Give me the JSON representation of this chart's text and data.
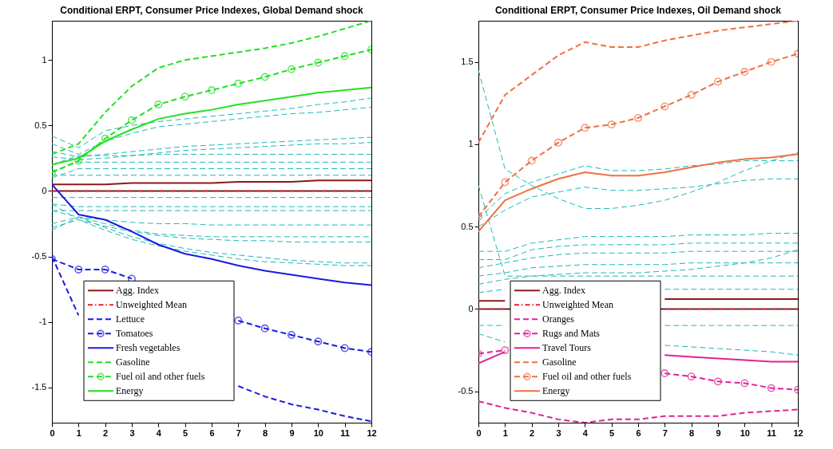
{
  "chart_data": [
    {
      "type": "line",
      "title": "Conditional ERPT, Consumer Price Indexes, Global Demand shock",
      "x": [
        0,
        1,
        2,
        3,
        4,
        5,
        6,
        7,
        8,
        9,
        10,
        11,
        12
      ],
      "xlim": [
        0,
        12
      ],
      "xticks": [
        0,
        1,
        2,
        3,
        4,
        5,
        6,
        7,
        8,
        9,
        10,
        11,
        12
      ],
      "ylim": [
        -1.77,
        1.3
      ],
      "yticks": [
        -1.5,
        -1,
        -0.5,
        0,
        0.5,
        1
      ],
      "grid": false,
      "legend": "bottom left",
      "ref_lines": [
        {
          "axis": "y",
          "value": 0,
          "color": "#000000"
        }
      ],
      "series": [
        {
          "color": "#1fb8b8",
          "line_style": "dashed",
          "values": [
            0.42,
            0.33,
            0.46,
            0.5,
            0.53,
            0.55,
            0.57,
            0.59,
            0.61,
            0.63,
            0.66,
            0.68,
            0.71
          ]
        },
        {
          "color": "#1fb8b8",
          "line_style": "dashed",
          "values": [
            0.36,
            0.28,
            0.38,
            0.44,
            0.49,
            0.51,
            0.53,
            0.55,
            0.57,
            0.59,
            0.6,
            0.62,
            0.64
          ]
        },
        {
          "color": "#1fb8b8",
          "line_style": "dashed",
          "values": [
            0.3,
            0.26,
            0.28,
            0.3,
            0.32,
            0.34,
            0.35,
            0.36,
            0.37,
            0.38,
            0.39,
            0.4,
            0.41
          ]
        },
        {
          "color": "#1fb8b8",
          "line_style": "dashed",
          "values": [
            0.26,
            0.24,
            0.25,
            0.27,
            0.29,
            0.31,
            0.32,
            0.33,
            0.34,
            0.35,
            0.36,
            0.36,
            0.37
          ]
        },
        {
          "color": "#1fb8b8",
          "line_style": "dashed",
          "values": [
            0.2,
            0.27,
            0.27,
            0.27,
            0.28,
            0.28,
            0.28,
            0.28,
            0.28,
            0.28,
            0.28,
            0.28,
            0.28
          ]
        },
        {
          "color": "#1fb8b8",
          "line_style": "dashed",
          "values": [
            0.15,
            0.22,
            0.22,
            0.22,
            0.22,
            0.22,
            0.22,
            0.22,
            0.22,
            0.22,
            0.22,
            0.22,
            0.22
          ]
        },
        {
          "color": "#1fb8b8",
          "line_style": "dashed",
          "values": [
            0.1,
            0.17,
            0.17,
            0.17,
            0.17,
            0.17,
            0.17,
            0.17,
            0.17,
            0.17,
            0.17,
            0.17,
            0.17
          ]
        },
        {
          "color": "#1fb8b8",
          "line_style": "dashed",
          "values": [
            0.12,
            0.12,
            0.12,
            0.12,
            0.12,
            0.12,
            0.12,
            0.12,
            0.12,
            0.12,
            0.12,
            0.12,
            0.12
          ]
        },
        {
          "color": "#1fb8b8",
          "line_style": "dashed",
          "values": [
            -0.05,
            -0.05,
            -0.05,
            -0.05,
            -0.05,
            -0.05,
            -0.05,
            -0.05,
            -0.05,
            -0.05,
            -0.05,
            -0.05,
            -0.05
          ]
        },
        {
          "color": "#1fb8b8",
          "line_style": "dashed",
          "values": [
            -0.1,
            -0.12,
            -0.12,
            -0.12,
            -0.12,
            -0.12,
            -0.12,
            -0.12,
            -0.12,
            -0.12,
            -0.12,
            -0.12,
            -0.12
          ]
        },
        {
          "color": "#1fb8b8",
          "line_style": "dashed",
          "values": [
            -0.15,
            -0.15,
            -0.15,
            -0.15,
            -0.15,
            -0.15,
            -0.15,
            -0.15,
            -0.15,
            -0.15,
            -0.15,
            -0.15,
            -0.15
          ]
        },
        {
          "color": "#1fb8b8",
          "line_style": "dashed",
          "values": [
            -0.25,
            -0.2,
            -0.22,
            -0.24,
            -0.25,
            -0.25,
            -0.26,
            -0.26,
            -0.26,
            -0.26,
            -0.26,
            -0.26,
            -0.26
          ]
        },
        {
          "color": "#1fb8b8",
          "line_style": "dashed",
          "values": [
            -0.3,
            -0.2,
            -0.25,
            -0.3,
            -0.33,
            -0.34,
            -0.35,
            -0.35,
            -0.35,
            -0.35,
            -0.35,
            -0.35,
            -0.35
          ]
        },
        {
          "color": "#1fb8b8",
          "line_style": "dashed",
          "values": [
            -0.28,
            -0.22,
            -0.27,
            -0.31,
            -0.34,
            -0.36,
            -0.37,
            -0.38,
            -0.38,
            -0.39,
            -0.39,
            -0.39,
            -0.39
          ]
        },
        {
          "color": "#1fb8b8",
          "line_style": "dashed",
          "values": [
            -0.15,
            -0.2,
            -0.28,
            -0.35,
            -0.4,
            -0.44,
            -0.47,
            -0.49,
            -0.51,
            -0.53,
            -0.54,
            -0.55,
            -0.55
          ]
        },
        {
          "color": "#1fb8b8",
          "line_style": "dashed",
          "values": [
            -0.1,
            -0.22,
            -0.3,
            -0.37,
            -0.42,
            -0.46,
            -0.49,
            -0.52,
            -0.54,
            -0.55,
            -0.56,
            -0.57,
            -0.57
          ]
        },
        {
          "name": "Agg. Index",
          "color": "#8b1a1a",
          "line_style": "solid",
          "values": [
            0.05,
            0.05,
            0.05,
            0.06,
            0.06,
            0.06,
            0.06,
            0.07,
            0.07,
            0.07,
            0.08,
            0.08,
            0.08
          ]
        },
        {
          "name": "Unweighted Mean",
          "color": "#e8202a",
          "line_style": "dotted",
          "values": [
            0,
            0,
            0,
            0,
            0,
            0,
            0,
            0,
            0,
            0,
            0,
            0,
            0
          ]
        },
        {
          "name": "Lettuce",
          "color": "#1a1adf",
          "line_style": "dashed",
          "values": [
            -0.5,
            -0.95,
            null,
            null,
            null,
            null,
            null,
            -1.49,
            -1.57,
            -1.63,
            -1.67,
            -1.72,
            -1.76
          ]
        },
        {
          "name": "Tomatoes",
          "color": "#1a1adf",
          "line_style": "dashed",
          "marker": "circle",
          "values": [
            -0.52,
            -0.6,
            -0.6,
            -0.67,
            null,
            null,
            null,
            -0.99,
            -1.05,
            -1.1,
            -1.15,
            -1.2,
            -1.23
          ]
        },
        {
          "name": "Fresh vegetables",
          "color": "#1a1adf",
          "line_style": "solid",
          "values": [
            0.05,
            -0.18,
            -0.22,
            -0.31,
            -0.41,
            -0.48,
            -0.52,
            -0.57,
            -0.61,
            -0.64,
            -0.67,
            -0.7,
            -0.72
          ]
        },
        {
          "name": "Gasoline",
          "color": "#22e022",
          "line_style": "dashed",
          "values": [
            0.28,
            0.36,
            0.6,
            0.8,
            0.94,
            1.0,
            1.03,
            1.06,
            1.09,
            1.13,
            1.18,
            1.24,
            1.3
          ]
        },
        {
          "name": "Fuel oil and other fuels",
          "color": "#22e022",
          "line_style": "dashed",
          "marker": "circle",
          "values": [
            0.14,
            0.23,
            0.4,
            0.54,
            0.66,
            0.72,
            0.77,
            0.82,
            0.87,
            0.93,
            0.98,
            1.03,
            1.08
          ]
        },
        {
          "name": "Energy",
          "color": "#22e022",
          "line_style": "solid",
          "values": [
            0.2,
            0.25,
            0.38,
            0.47,
            0.55,
            0.59,
            0.62,
            0.66,
            0.69,
            0.72,
            0.75,
            0.77,
            0.79
          ]
        }
      ]
    },
    {
      "type": "line",
      "title": "Conditional ERPT, Consumer Price Indexes, Oil Demand shock",
      "x": [
        0,
        1,
        2,
        3,
        4,
        5,
        6,
        7,
        8,
        9,
        10,
        11,
        12
      ],
      "xlim": [
        0,
        12
      ],
      "xticks": [
        0,
        1,
        2,
        3,
        4,
        5,
        6,
        7,
        8,
        9,
        10,
        11,
        12
      ],
      "ylim": [
        -0.69,
        1.75
      ],
      "yticks": [
        -0.5,
        0,
        0.5,
        1,
        1.5
      ],
      "grid": false,
      "legend": "bottom left",
      "ref_lines": [
        {
          "axis": "y",
          "value": 0,
          "color": "#000000"
        }
      ],
      "series": [
        {
          "color": "#1fb8b8",
          "line_style": "dashed",
          "values": [
            1.45,
            0.85,
            0.75,
            0.67,
            0.61,
            0.61,
            0.63,
            0.66,
            0.71,
            0.77,
            0.84,
            0.9,
            0.95
          ]
        },
        {
          "color": "#1fb8b8",
          "line_style": "dashed",
          "values": [
            0.55,
            0.7,
            0.77,
            0.82,
            0.87,
            0.84,
            0.84,
            0.85,
            0.87,
            0.88,
            0.9,
            0.9,
            0.9
          ]
        },
        {
          "color": "#1fb8b8",
          "line_style": "dashed",
          "values": [
            0.5,
            0.6,
            0.68,
            0.71,
            0.74,
            0.72,
            0.72,
            0.73,
            0.74,
            0.76,
            0.78,
            0.79,
            0.79
          ]
        },
        {
          "color": "#1fb8b8",
          "line_style": "dashed",
          "values": [
            0.75,
            0.2,
            0.2,
            0.2,
            0.2,
            0.2,
            0.2,
            0.2,
            0.2,
            0.2,
            0.2,
            0.2,
            0.2
          ]
        },
        {
          "color": "#1fb8b8",
          "line_style": "dashed",
          "values": [
            0.35,
            0.35,
            0.4,
            0.42,
            0.44,
            0.44,
            0.44,
            0.44,
            0.45,
            0.45,
            0.45,
            0.46,
            0.46
          ]
        },
        {
          "color": "#1fb8b8",
          "line_style": "dashed",
          "values": [
            0.3,
            0.3,
            0.36,
            0.38,
            0.39,
            0.39,
            0.39,
            0.39,
            0.4,
            0.4,
            0.4,
            0.4,
            0.4
          ]
        },
        {
          "color": "#1fb8b8",
          "line_style": "dashed",
          "values": [
            0.25,
            0.28,
            0.31,
            0.33,
            0.34,
            0.34,
            0.34,
            0.34,
            0.35,
            0.35,
            0.35,
            0.35,
            0.35
          ]
        },
        {
          "color": "#1fb8b8",
          "line_style": "dashed",
          "values": [
            0.2,
            0.22,
            0.25,
            0.26,
            0.27,
            0.27,
            0.27,
            0.27,
            0.28,
            0.28,
            0.28,
            0.28,
            0.28
          ]
        },
        {
          "color": "#1fb8b8",
          "line_style": "dashed",
          "values": [
            0.15,
            0.18,
            0.2,
            0.21,
            0.22,
            0.22,
            0.22,
            0.23,
            0.24,
            0.26,
            0.28,
            0.31,
            0.36
          ]
        },
        {
          "color": "#1fb8b8",
          "line_style": "dashed",
          "values": [
            0.1,
            0.12,
            null,
            null,
            null,
            null,
            null,
            0.12,
            0.12,
            0.12,
            0.12,
            0.12,
            0.12
          ]
        },
        {
          "color": "#1fb8b8",
          "line_style": "dashed",
          "values": [
            -0.1,
            -0.1,
            null,
            null,
            null,
            null,
            null,
            -0.1,
            -0.1,
            -0.1,
            -0.1,
            -0.1,
            -0.1
          ]
        },
        {
          "color": "#1fb8b8",
          "line_style": "dashed",
          "values": [
            -0.15,
            -0.2,
            null,
            null,
            null,
            null,
            null,
            -0.22,
            -0.23,
            -0.24,
            -0.25,
            -0.26,
            -0.28
          ]
        },
        {
          "name": "Agg. Index",
          "color": "#8b1a1a",
          "line_style": "solid",
          "values": [
            0.05,
            0.05,
            null,
            null,
            null,
            null,
            null,
            0.06,
            0.06,
            0.06,
            0.06,
            0.06,
            0.06
          ]
        },
        {
          "name": "Unweighted Mean",
          "color": "#e8202a",
          "line_style": "dotted",
          "values": [
            0,
            0,
            null,
            null,
            null,
            null,
            null,
            0,
            0,
            0,
            0,
            0,
            0
          ]
        },
        {
          "name": "Oranges",
          "color": "#e2209a",
          "line_style": "dashed",
          "values": [
            -0.56,
            -0.6,
            -0.63,
            -0.67,
            -0.69,
            -0.67,
            -0.67,
            -0.65,
            -0.65,
            -0.65,
            -0.63,
            -0.62,
            -0.61
          ]
        },
        {
          "name": "Rugs and Mats",
          "color": "#e2209a",
          "line_style": "dashed",
          "marker": "circle",
          "values": [
            -0.27,
            -0.25,
            null,
            null,
            null,
            null,
            null,
            -0.39,
            -0.41,
            -0.44,
            -0.45,
            -0.48,
            -0.49
          ]
        },
        {
          "name": "Travel Tours",
          "color": "#e2209a",
          "line_style": "solid",
          "values": [
            -0.33,
            -0.26,
            null,
            null,
            null,
            null,
            null,
            -0.28,
            -0.29,
            -0.3,
            -0.31,
            -0.32,
            -0.32
          ]
        },
        {
          "name": "Gasoline",
          "color": "#f07040",
          "line_style": "dashed",
          "values": [
            1.01,
            1.3,
            1.42,
            1.54,
            1.62,
            1.59,
            1.59,
            1.63,
            1.66,
            1.69,
            1.71,
            1.73,
            1.75
          ]
        },
        {
          "name": "Fuel oil and other fuels",
          "color": "#f07040",
          "line_style": "dashed",
          "marker": "circle",
          "values": [
            0.56,
            0.77,
            0.9,
            1.01,
            1.1,
            1.12,
            1.16,
            1.23,
            1.3,
            1.38,
            1.44,
            1.5,
            1.55
          ]
        },
        {
          "name": "Energy",
          "color": "#f07040",
          "line_style": "solid",
          "values": [
            0.47,
            0.66,
            0.73,
            0.79,
            0.83,
            0.81,
            0.81,
            0.83,
            0.86,
            0.89,
            0.91,
            0.92,
            0.94
          ]
        }
      ]
    }
  ]
}
